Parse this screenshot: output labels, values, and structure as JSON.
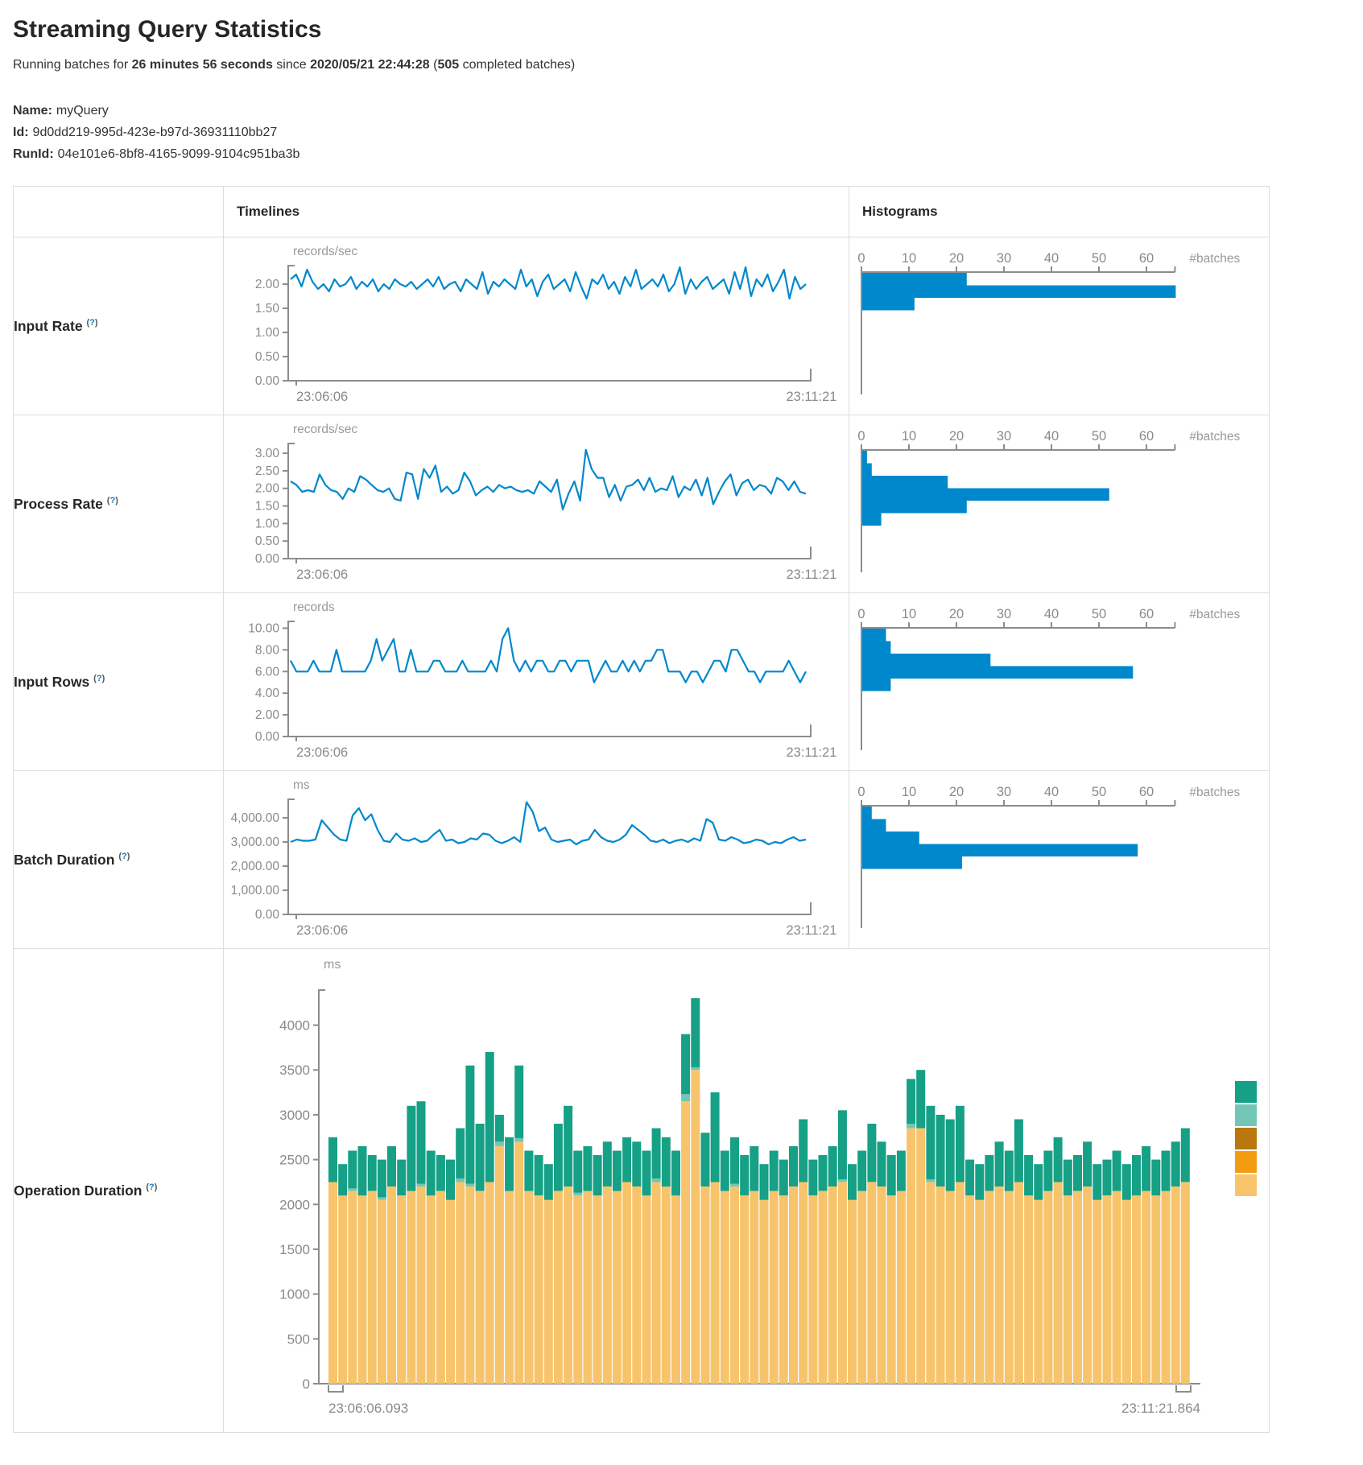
{
  "page": {
    "title": "Streaming Query Statistics",
    "sub": {
      "prefix": "Running batches for ",
      "duration": "26 minutes 56 seconds",
      "mid": " since ",
      "time": "2020/05/21 22:44:28",
      "open": " (",
      "count": "505",
      "suffix": " completed batches)"
    },
    "name_label": "Name:",
    "name_value": "myQuery",
    "id_label": "Id:",
    "id_value": "9d0dd219-995d-423e-b97d-36931110bb27",
    "runid_label": "RunId:",
    "runid_value": "04e101e6-8bf8-4165-9099-9104c951ba3b"
  },
  "table": {
    "col_timelines": "Timelines",
    "col_histograms": "Histograms",
    "help_open": "(",
    "help_q": "?",
    "help_close": ")",
    "rows": [
      {
        "label": "Input Rate"
      },
      {
        "label": "Process Rate"
      },
      {
        "label": "Input Rows"
      },
      {
        "label": "Batch Duration"
      },
      {
        "label": "Operation Duration"
      }
    ]
  },
  "colors": {
    "line": "#0088cc",
    "bar": "#0088cc",
    "axis": "#8c8c8c",
    "tick_text": "#8a8a8a",
    "unit_text": "#999999",
    "segments": [
      "#f7c46c",
      "#73c6b6",
      "#16a085"
    ],
    "legend": [
      "#16a085",
      "#73c6b6",
      "#b9770e",
      "#f39c12",
      "#f7c46c"
    ]
  },
  "chart_data": [
    {
      "id": "input-rate-timeline",
      "type": "line",
      "title": "Input Rate timeline",
      "ylabel": "records/sec",
      "x_start": "23:06:06",
      "x_end": "23:11:21",
      "yticks": [
        0,
        0.5,
        1,
        1.5,
        2
      ],
      "ymax": 2.4,
      "decimals": 2,
      "comma": false,
      "values": [
        2.1,
        2.2,
        1.95,
        2.3,
        2.05,
        1.9,
        2.0,
        1.85,
        2.1,
        1.95,
        2.0,
        2.15,
        1.9,
        2.05,
        1.95,
        2.1,
        1.85,
        2.0,
        1.9,
        2.1,
        2.0,
        1.95,
        2.05,
        1.9,
        2.0,
        2.1,
        1.95,
        2.15,
        1.9,
        2.0,
        2.05,
        1.85,
        2.1,
        2.0,
        1.9,
        2.25,
        1.8,
        2.05,
        1.95,
        2.1,
        2.0,
        1.9,
        2.3,
        1.95,
        2.1,
        1.75,
        2.05,
        2.2,
        1.9,
        2.0,
        2.1,
        1.85,
        2.25,
        1.95,
        1.7,
        2.1,
        2.0,
        2.2,
        1.9,
        2.05,
        1.8,
        2.15,
        1.95,
        2.3,
        1.9,
        2.0,
        2.1,
        1.95,
        2.2,
        1.85,
        2.0,
        2.35,
        1.8,
        2.1,
        1.9,
        2.05,
        2.15,
        1.9,
        2.0,
        2.1,
        1.8,
        2.25,
        1.9,
        2.35,
        1.75,
        2.1,
        1.95,
        2.2,
        1.85,
        2.05,
        2.3,
        1.7,
        2.15,
        1.9,
        2.0
      ]
    },
    {
      "id": "input-rate-histogram",
      "type": "hbar",
      "title": "Input Rate histogram",
      "xlabel": "#batches",
      "xticks": [
        0,
        10,
        20,
        30,
        40,
        50,
        60
      ],
      "xmax": 66,
      "values": [
        22,
        66,
        11
      ]
    },
    {
      "id": "process-rate-timeline",
      "type": "line",
      "title": "Process Rate timeline",
      "ylabel": "records/sec",
      "x_start": "23:06:06",
      "x_end": "23:11:21",
      "yticks": [
        0,
        0.5,
        1,
        1.5,
        2,
        2.5,
        3
      ],
      "ymax": 3.3,
      "decimals": 2,
      "comma": false,
      "values": [
        2.2,
        2.1,
        1.9,
        1.95,
        1.9,
        2.4,
        2.1,
        1.95,
        1.9,
        1.7,
        2.0,
        1.9,
        2.35,
        2.25,
        2.1,
        1.95,
        1.9,
        2.0,
        1.7,
        1.65,
        2.45,
        2.4,
        1.7,
        2.55,
        2.3,
        2.65,
        1.9,
        2.05,
        1.85,
        1.95,
        2.45,
        2.2,
        1.8,
        1.95,
        2.05,
        1.9,
        2.1,
        2.0,
        2.05,
        1.95,
        1.9,
        1.95,
        1.85,
        2.2,
        2.05,
        1.9,
        2.25,
        1.4,
        1.85,
        2.2,
        1.65,
        3.1,
        2.55,
        2.3,
        2.3,
        1.75,
        2.1,
        1.65,
        2.05,
        2.1,
        2.25,
        1.95,
        2.3,
        1.9,
        2.0,
        1.95,
        2.35,
        1.75,
        2.05,
        1.95,
        2.25,
        1.8,
        2.3,
        1.55,
        1.9,
        2.2,
        2.4,
        1.8,
        2.15,
        2.25,
        1.95,
        2.1,
        2.05,
        1.85,
        2.3,
        2.2,
        1.95,
        2.2,
        1.9,
        1.85
      ]
    },
    {
      "id": "process-rate-histogram",
      "type": "hbar",
      "title": "Process Rate histogram",
      "xlabel": "#batches",
      "xticks": [
        0,
        10,
        20,
        30,
        40,
        50,
        60
      ],
      "xmax": 66,
      "values": [
        1,
        2,
        18,
        52,
        22,
        4
      ]
    },
    {
      "id": "input-rows-timeline",
      "type": "line",
      "title": "Input Rows timeline",
      "ylabel": "records",
      "x_start": "23:06:06",
      "x_end": "23:11:21",
      "yticks": [
        0,
        2,
        4,
        6,
        8,
        10
      ],
      "ymax": 10.7,
      "decimals": 2,
      "comma": false,
      "values": [
        7,
        6,
        6,
        6,
        7,
        6,
        6,
        6,
        8,
        6,
        6,
        6,
        6,
        6,
        7,
        9,
        7,
        8,
        9,
        6,
        6,
        8,
        6,
        6,
        6,
        7,
        7,
        6,
        6,
        6,
        7,
        6,
        6,
        6,
        6,
        7,
        6,
        9,
        10,
        7,
        6,
        7,
        6,
        7,
        7,
        6,
        6,
        7,
        7,
        6,
        7,
        7,
        7,
        5,
        6,
        7,
        6,
        6,
        7,
        6,
        7,
        6,
        7,
        7,
        8,
        8,
        6,
        6,
        6,
        5,
        6,
        6,
        5,
        6,
        7,
        7,
        6,
        8,
        8,
        7,
        6,
        6,
        5,
        6,
        6,
        6,
        6,
        7,
        6,
        5,
        6
      ]
    },
    {
      "id": "input-rows-histogram",
      "type": "hbar",
      "title": "Input Rows histogram",
      "xlabel": "#batches",
      "xticks": [
        0,
        10,
        20,
        30,
        40,
        50,
        60
      ],
      "xmax": 66,
      "values": [
        5,
        6,
        27,
        57,
        6
      ]
    },
    {
      "id": "batch-duration-timeline",
      "type": "line",
      "title": "Batch Duration timeline",
      "ylabel": "ms",
      "x_start": "23:06:06",
      "x_end": "23:11:21",
      "yticks": [
        0,
        1000,
        2000,
        3000,
        4000
      ],
      "ymax": 4800,
      "decimals": 2,
      "comma": true,
      "values": [
        3000,
        3100,
        3050,
        3050,
        3100,
        3900,
        3600,
        3300,
        3100,
        3050,
        4100,
        4400,
        3900,
        4150,
        3500,
        3050,
        3000,
        3350,
        3100,
        3050,
        3150,
        3000,
        3050,
        3300,
        3500,
        3050,
        3100,
        2950,
        3000,
        3150,
        3100,
        3350,
        3300,
        3050,
        2950,
        3050,
        3200,
        3000,
        4650,
        4250,
        3450,
        3600,
        3100,
        3000,
        3050,
        3100,
        2900,
        3050,
        3100,
        3500,
        3200,
        3050,
        3000,
        3100,
        3300,
        3700,
        3500,
        3300,
        3050,
        3000,
        3100,
        2950,
        3050,
        3100,
        3000,
        3150,
        3050,
        3950,
        3800,
        3100,
        3050,
        3200,
        3100,
        2950,
        3000,
        3100,
        3050,
        2900,
        3000,
        2950,
        3100,
        3200,
        3050,
        3100
      ]
    },
    {
      "id": "batch-duration-histogram",
      "type": "hbar",
      "title": "Batch Duration histogram",
      "xlabel": "#batches",
      "xticks": [
        0,
        10,
        20,
        30,
        40,
        50,
        60
      ],
      "xmax": 66,
      "values": [
        2,
        5,
        12,
        58,
        21
      ]
    },
    {
      "id": "operation-duration",
      "type": "stacked",
      "title": "Operation Duration",
      "ylabel": "ms",
      "x_start": "23:06:06.093",
      "x_end": "23:11:21.864",
      "yticks": [
        0,
        500,
        1000,
        1500,
        2000,
        2500,
        3000,
        3500,
        4000
      ],
      "ymax": 4400,
      "bars": [
        [
          2250,
          0,
          500
        ],
        [
          2100,
          0,
          350
        ],
        [
          2150,
          30,
          420
        ],
        [
          2100,
          0,
          550
        ],
        [
          2150,
          0,
          400
        ],
        [
          2050,
          30,
          420
        ],
        [
          2200,
          0,
          450
        ],
        [
          2100,
          0,
          400
        ],
        [
          2150,
          0,
          950
        ],
        [
          2200,
          30,
          920
        ],
        [
          2100,
          0,
          500
        ],
        [
          2150,
          0,
          400
        ],
        [
          2050,
          0,
          450
        ],
        [
          2250,
          40,
          560
        ],
        [
          2200,
          30,
          1320
        ],
        [
          2150,
          0,
          750
        ],
        [
          2250,
          0,
          1450
        ],
        [
          2650,
          50,
          300
        ],
        [
          2150,
          0,
          600
        ],
        [
          2700,
          40,
          810
        ],
        [
          2150,
          0,
          450
        ],
        [
          2100,
          0,
          450
        ],
        [
          2050,
          0,
          400
        ],
        [
          2150,
          0,
          750
        ],
        [
          2200,
          0,
          900
        ],
        [
          2100,
          30,
          470
        ],
        [
          2150,
          0,
          500
        ],
        [
          2100,
          0,
          450
        ],
        [
          2200,
          0,
          500
        ],
        [
          2150,
          0,
          450
        ],
        [
          2250,
          0,
          500
        ],
        [
          2200,
          0,
          500
        ],
        [
          2100,
          0,
          500
        ],
        [
          2250,
          40,
          560
        ],
        [
          2200,
          0,
          550
        ],
        [
          2100,
          0,
          500
        ],
        [
          3150,
          80,
          670
        ],
        [
          3500,
          30,
          770
        ],
        [
          2200,
          0,
          600
        ],
        [
          2250,
          0,
          1000
        ],
        [
          2150,
          0,
          450
        ],
        [
          2200,
          30,
          520
        ],
        [
          2100,
          0,
          450
        ],
        [
          2150,
          0,
          500
        ],
        [
          2050,
          0,
          400
        ],
        [
          2150,
          0,
          450
        ],
        [
          2100,
          0,
          400
        ],
        [
          2200,
          0,
          450
        ],
        [
          2250,
          0,
          700
        ],
        [
          2100,
          0,
          400
        ],
        [
          2150,
          0,
          400
        ],
        [
          2200,
          0,
          450
        ],
        [
          2250,
          30,
          770
        ],
        [
          2050,
          0,
          400
        ],
        [
          2150,
          0,
          450
        ],
        [
          2250,
          0,
          650
        ],
        [
          2200,
          0,
          500
        ],
        [
          2100,
          0,
          450
        ],
        [
          2150,
          0,
          450
        ],
        [
          2850,
          50,
          500
        ],
        [
          2850,
          0,
          650
        ],
        [
          2250,
          30,
          820
        ],
        [
          2200,
          0,
          800
        ],
        [
          2150,
          0,
          800
        ],
        [
          2250,
          0,
          850
        ],
        [
          2100,
          0,
          400
        ],
        [
          2050,
          0,
          400
        ],
        [
          2150,
          0,
          400
        ],
        [
          2200,
          0,
          500
        ],
        [
          2150,
          0,
          450
        ],
        [
          2250,
          0,
          700
        ],
        [
          2100,
          0,
          450
        ],
        [
          2050,
          0,
          400
        ],
        [
          2150,
          0,
          450
        ],
        [
          2250,
          0,
          500
        ],
        [
          2100,
          0,
          400
        ],
        [
          2150,
          0,
          400
        ],
        [
          2200,
          0,
          500
        ],
        [
          2050,
          0,
          400
        ],
        [
          2100,
          0,
          400
        ],
        [
          2150,
          0,
          450
        ],
        [
          2050,
          0,
          400
        ],
        [
          2100,
          0,
          450
        ],
        [
          2150,
          0,
          500
        ],
        [
          2100,
          0,
          400
        ],
        [
          2150,
          0,
          450
        ],
        [
          2200,
          0,
          500
        ],
        [
          2250,
          0,
          600
        ]
      ]
    }
  ]
}
